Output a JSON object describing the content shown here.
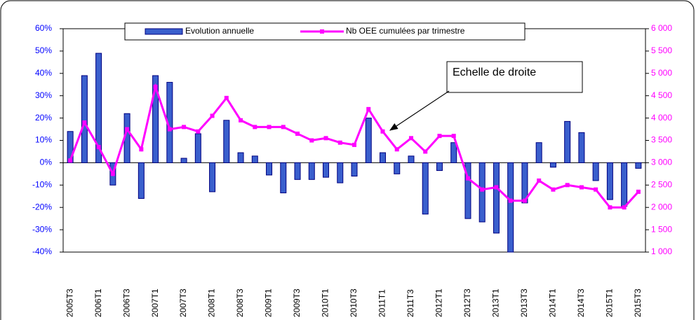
{
  "chart_data": {
    "type": "bar_line",
    "categories": [
      "2005T3",
      null,
      "2006T1",
      null,
      "2006T3",
      null,
      "2007T1",
      null,
      "2007T3",
      null,
      "2008T1",
      null,
      "2008T3",
      null,
      "2009T1",
      null,
      "2009T3",
      null,
      "2010T1",
      null,
      "2010T3",
      null,
      "2011T1",
      null,
      "2011T3",
      null,
      "2012T1",
      null,
      "2012T3",
      null,
      "2013T1",
      null,
      "2013T3",
      null,
      "2014T1",
      null,
      "2014T3",
      null,
      "2015T1",
      null,
      "2015T3"
    ],
    "series": [
      {
        "name": "Evolution annuelle",
        "type": "bar",
        "color": "#3a5fcd",
        "values": [
          14,
          39,
          49,
          -10,
          22,
          -16,
          39,
          36,
          2,
          13,
          -13,
          19,
          4.5,
          3,
          -5.5,
          -13.5,
          -7.5,
          -7.5,
          -6.5,
          -9,
          -6,
          20,
          4.5,
          -5,
          3,
          -23,
          -3.5,
          9,
          -25,
          -26.5,
          -31.5,
          -40,
          -18,
          9,
          -2,
          18.5,
          13.5,
          -8,
          -16.5,
          -19.5,
          -2.5
        ]
      },
      {
        "name": "Nb OEE cumulées par trimestre",
        "type": "line",
        "axis": "y2",
        "color": "#ff00ff",
        "values": [
          3050,
          3900,
          3350,
          2750,
          3750,
          3300,
          4700,
          3750,
          3800,
          3700,
          4050,
          4450,
          3950,
          3800,
          3800,
          3800,
          3650,
          3500,
          3550,
          3450,
          3400,
          4200,
          3700,
          3300,
          3550,
          3250,
          3600,
          3600,
          2650,
          2400,
          2450,
          2150,
          2150,
          2600,
          2400,
          2500,
          2450,
          2400,
          2000,
          2000,
          2350
        ]
      }
    ],
    "ylim": [
      -40,
      60
    ],
    "yticks": [
      {
        "value": -40,
        "label": "-40%"
      },
      {
        "value": -30,
        "label": "-30%"
      },
      {
        "value": -20,
        "label": "-20%"
      },
      {
        "value": -10,
        "label": "-10%"
      },
      {
        "value": 0,
        "label": "0%"
      },
      {
        "value": 10,
        "label": "10%"
      },
      {
        "value": 20,
        "label": "20%"
      },
      {
        "value": 30,
        "label": "30%"
      },
      {
        "value": 40,
        "label": "40%"
      },
      {
        "value": 50,
        "label": "50%"
      },
      {
        "value": 60,
        "label": "60%"
      }
    ],
    "y2lim": [
      1000,
      6000
    ],
    "y2ticks": [
      {
        "value": 1000,
        "label": "1 000"
      },
      {
        "value": 1500,
        "label": "1 500"
      },
      {
        "value": 2000,
        "label": "2 000"
      },
      {
        "value": 2500,
        "label": "2 500"
      },
      {
        "value": 3000,
        "label": "3 000"
      },
      {
        "value": 3500,
        "label": "3 500"
      },
      {
        "value": 4000,
        "label": "4 000"
      },
      {
        "value": 4500,
        "label": "4 500"
      },
      {
        "value": 5000,
        "label": "5 000"
      },
      {
        "value": 5500,
        "label": "5 500"
      },
      {
        "value": 6000,
        "label": "6 000"
      }
    ],
    "annotation": "Echelle de droite",
    "grid": false
  }
}
